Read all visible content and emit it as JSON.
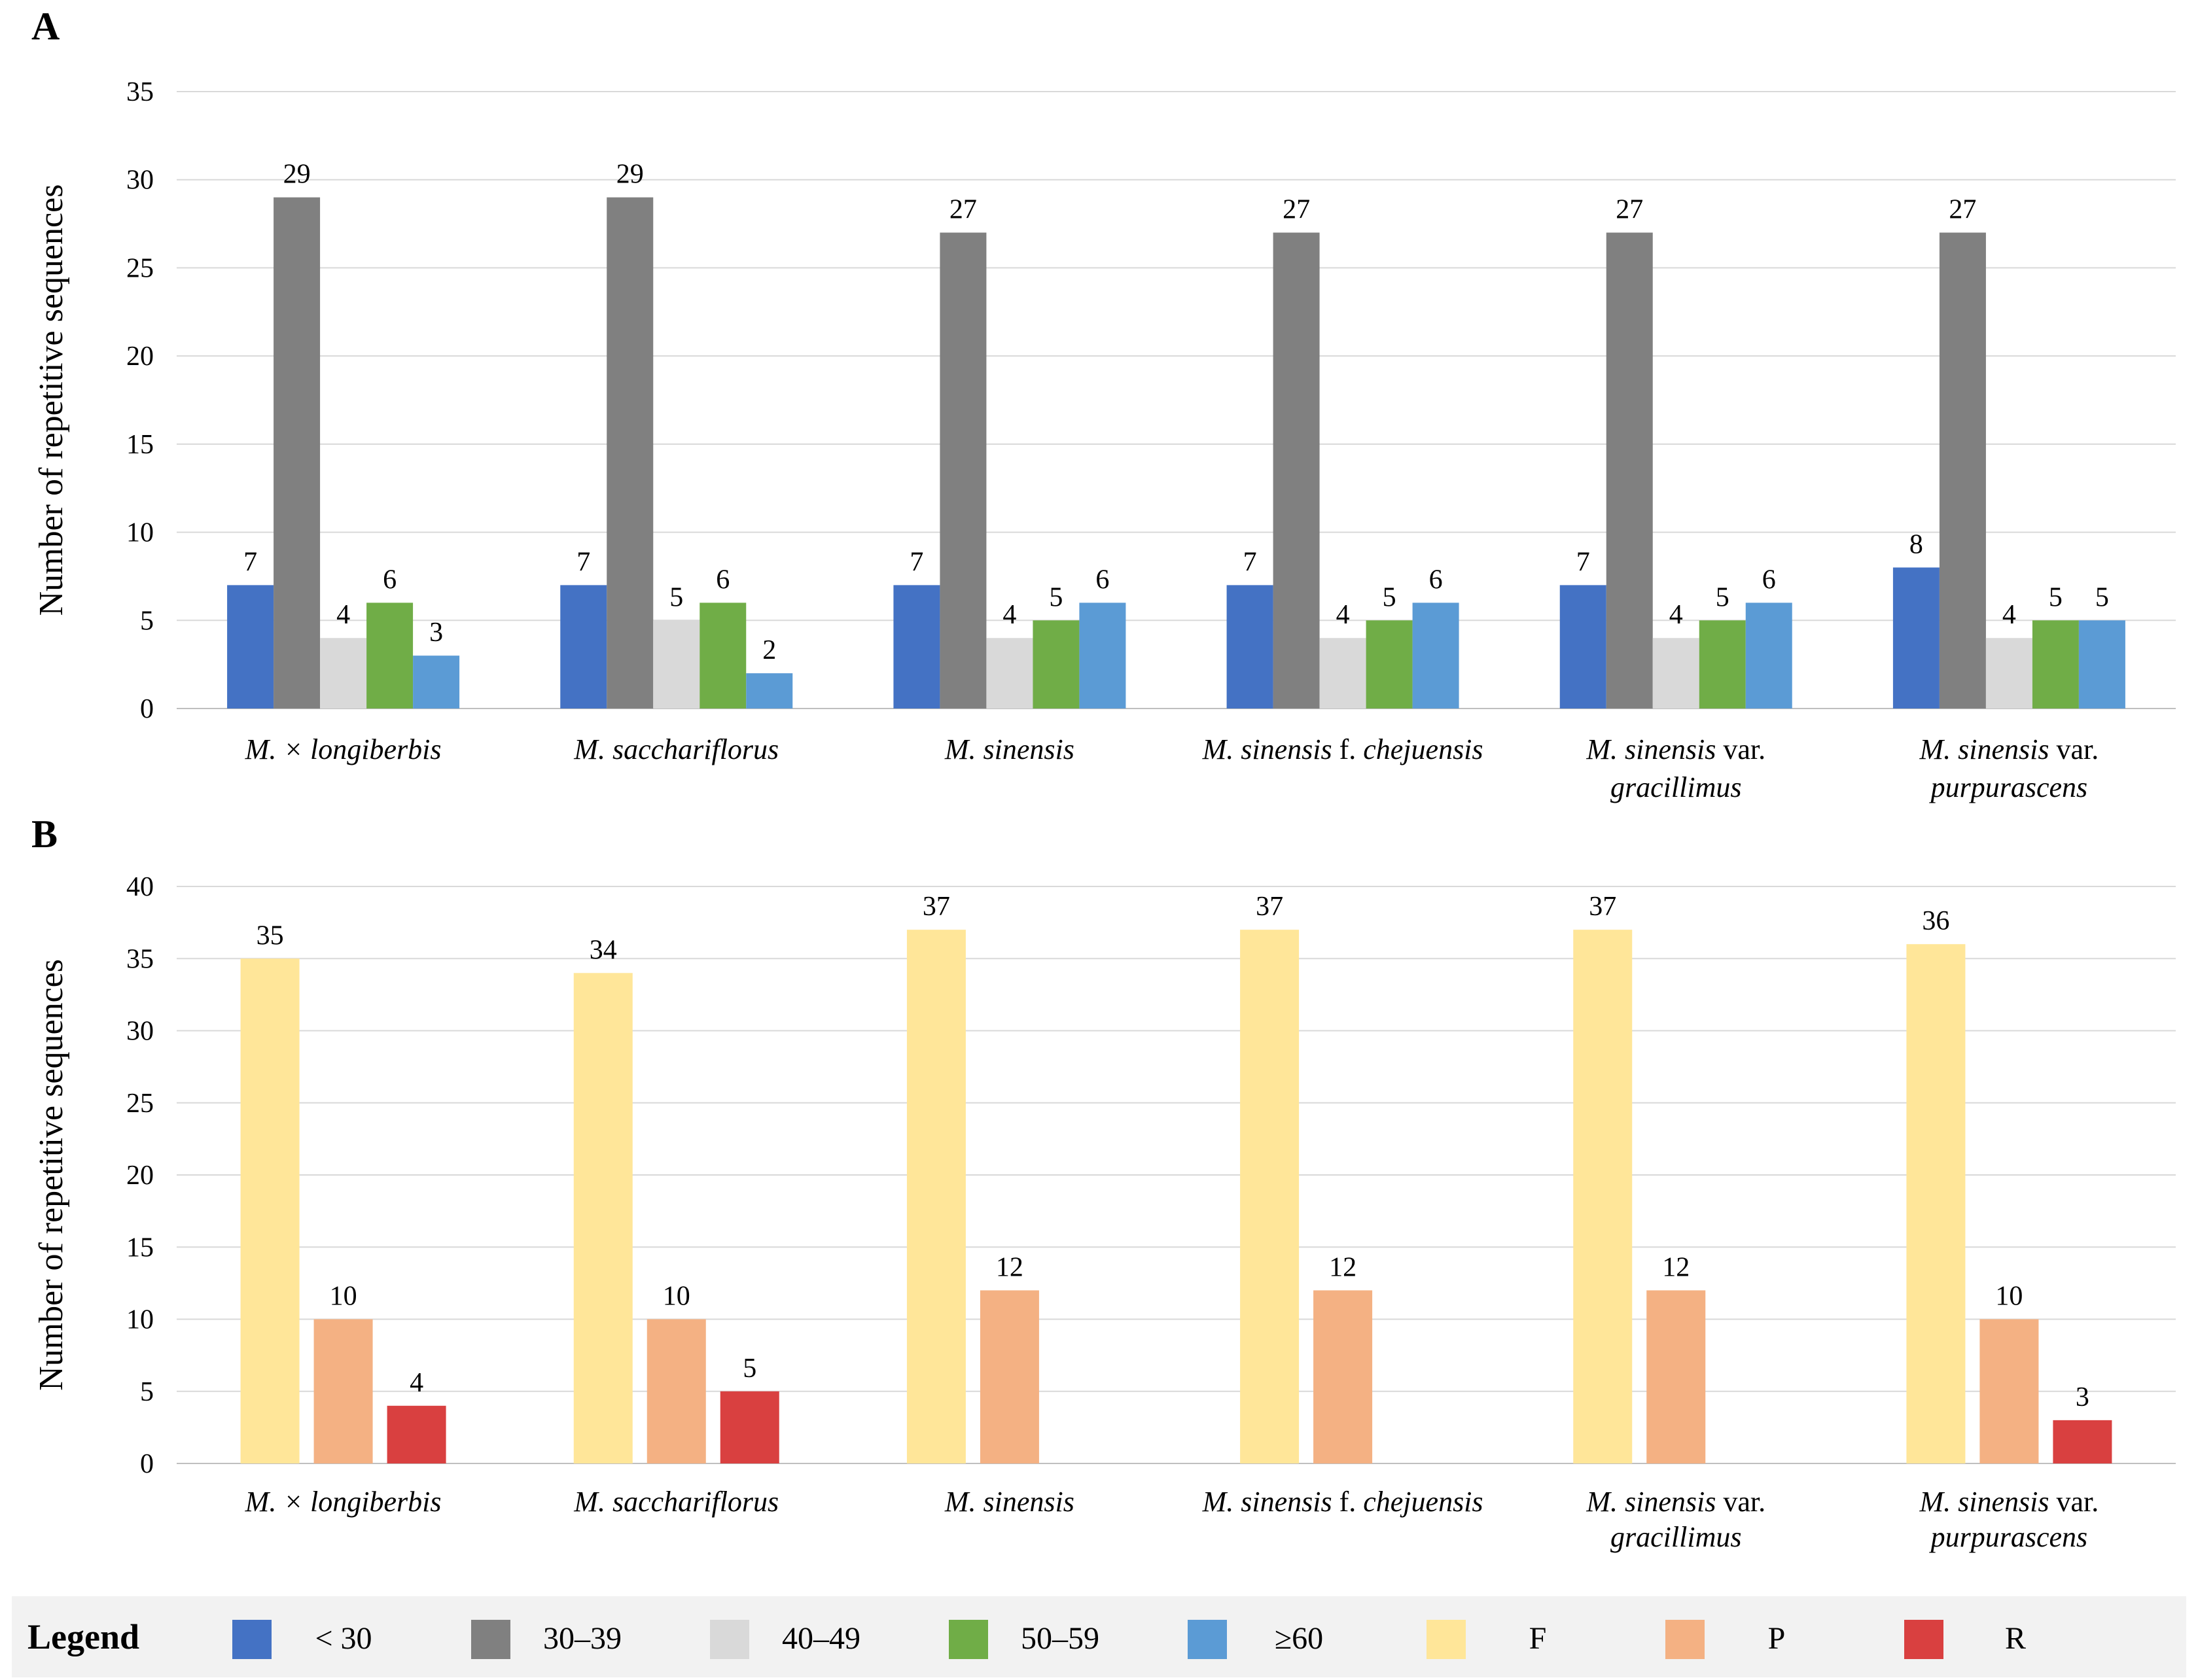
{
  "chart_data": [
    {
      "type": "bar",
      "panel": "A",
      "ylabel": "Number of repetitive sequences",
      "ylim": [
        0,
        35
      ],
      "yticks": [
        0,
        5,
        10,
        15,
        20,
        25,
        30,
        35
      ],
      "grid": true,
      "categories": [
        [
          {
            "t": "M. × longiberbis",
            "i": true
          }
        ],
        [
          {
            "t": "M. sacchariflorus",
            "i": true
          }
        ],
        [
          {
            "t": "M. sinensis",
            "i": true
          }
        ],
        [
          {
            "t": "M. sinensis",
            "i": true
          },
          {
            "t": " f. ",
            "i": false
          },
          {
            "t": "chejuensis",
            "i": true
          }
        ],
        [
          {
            "t": "M. sinensis",
            "i": true
          },
          {
            "t": " var.",
            "i": false
          },
          {
            "br": true
          },
          {
            "t": "gracillimus",
            "i": true
          }
        ],
        [
          {
            "t": "M. sinensis",
            "i": true
          },
          {
            "t": " var.",
            "i": false
          },
          {
            "br": true
          },
          {
            "t": "purpurascens",
            "i": true
          }
        ]
      ],
      "series": [
        {
          "name": "< 30",
          "color": "#4472c4",
          "values": [
            7,
            7,
            7,
            7,
            7,
            8
          ]
        },
        {
          "name": "30–39",
          "color": "#808080",
          "values": [
            29,
            29,
            27,
            27,
            27,
            27
          ]
        },
        {
          "name": "40–49",
          "color": "#d9d9d9",
          "values": [
            4,
            5,
            4,
            4,
            4,
            4
          ]
        },
        {
          "name": "50–59",
          "color": "#70ad47",
          "values": [
            6,
            6,
            5,
            5,
            5,
            5
          ]
        },
        {
          "name": "≥60",
          "color": "#5b9bd5",
          "values": [
            3,
            2,
            6,
            6,
            6,
            5
          ]
        }
      ]
    },
    {
      "type": "bar",
      "panel": "B",
      "ylabel": "Number of repetitive sequences",
      "ylim": [
        0,
        40
      ],
      "yticks": [
        0,
        5,
        10,
        15,
        20,
        25,
        30,
        35,
        40
      ],
      "grid": true,
      "categories": [
        [
          {
            "t": "M. × longiberbis",
            "i": true
          }
        ],
        [
          {
            "t": "M. sacchariflorus",
            "i": true
          }
        ],
        [
          {
            "t": "M. sinensis",
            "i": true
          }
        ],
        [
          {
            "t": "M. sinensis",
            "i": true
          },
          {
            "t": " f. ",
            "i": false
          },
          {
            "t": "chejuensis",
            "i": true
          }
        ],
        [
          {
            "t": "M. sinensis",
            "i": true
          },
          {
            "t": " var.",
            "i": false
          },
          {
            "br": true
          },
          {
            "t": "gracillimus",
            "i": true
          }
        ],
        [
          {
            "t": "M. sinensis",
            "i": true
          },
          {
            "t": " var.",
            "i": false
          },
          {
            "br": true
          },
          {
            "t": "purpurascens",
            "i": true
          }
        ]
      ],
      "series": [
        {
          "name": "F",
          "color": "#ffe699",
          "values": [
            35,
            34,
            37,
            37,
            37,
            36
          ]
        },
        {
          "name": "P",
          "color": "#f4b183",
          "values": [
            10,
            10,
            12,
            12,
            12,
            10
          ]
        },
        {
          "name": "R",
          "color": "#d94040",
          "values": [
            4,
            5,
            null,
            null,
            null,
            3
          ]
        }
      ]
    }
  ],
  "legend": {
    "title": "Legend",
    "items": [
      {
        "label": "< 30",
        "color": "#4472c4"
      },
      {
        "label": "30–39",
        "color": "#808080"
      },
      {
        "label": "40–49",
        "color": "#d9d9d9"
      },
      {
        "label": "50–59",
        "color": "#70ad47"
      },
      {
        "label": "≥60",
        "color": "#5b9bd5"
      },
      {
        "label": "F",
        "color": "#ffe699"
      },
      {
        "label": "P",
        "color": "#f4b183"
      },
      {
        "label": "R",
        "color": "#d94040"
      }
    ]
  }
}
